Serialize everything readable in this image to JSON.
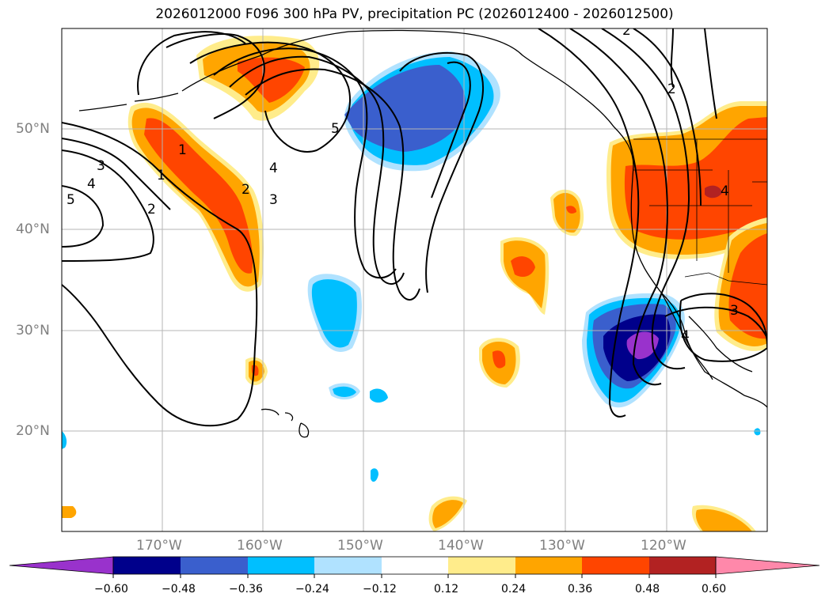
{
  "title": "2026012000 F096 300 hPa PV, precipitation PC (2026012400 - 2026012500)",
  "latitudes": [
    "50°N",
    "40°N",
    "30°N",
    "20°N"
  ],
  "longitudes": [
    "170°W",
    "160°W",
    "150°W",
    "140°W",
    "130°W",
    "120°W"
  ],
  "contour_labels": [
    "1",
    "1",
    "2",
    "2",
    "3",
    "3",
    "4",
    "4",
    "4",
    "5",
    "5",
    "2",
    "2",
    "3",
    "4"
  ],
  "colorbar": {
    "ticks": [
      "−0.60",
      "−0.48",
      "−0.36",
      "−0.24",
      "−0.12",
      "0.12",
      "0.24",
      "0.36",
      "0.48",
      "0.60"
    ],
    "colors": [
      "#9932cc",
      "#00008b",
      "#3a5fcd",
      "#00bfff",
      "#b0e2ff",
      "#ffffff",
      "#ffec8b",
      "#ffa500",
      "#ff4500",
      "#b22222",
      "#ff88aa"
    ]
  },
  "colors": {
    "neg_strong": "#9932cc",
    "neg_dark": "#00008b",
    "neg_mid": "#3a5fcd",
    "neg_light": "#00bfff",
    "neg_pale": "#b0e2ff",
    "pos_pale": "#ffec8b",
    "pos_light": "#ffa500",
    "pos_mid": "#ff4500",
    "pos_dark": "#b22222",
    "grid": "#b5b5b5"
  }
}
